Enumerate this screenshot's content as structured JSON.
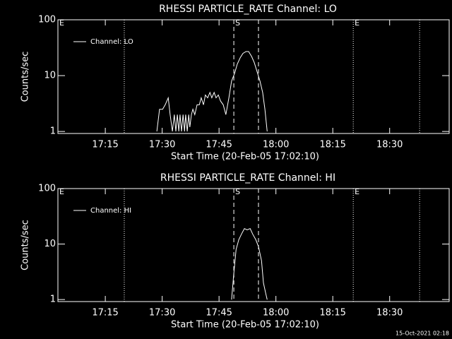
{
  "footer": "15-Oct-2021 02:18",
  "chart_data": [
    {
      "type": "line",
      "title": "RHESSI PARTICLE_RATE Channel: LO",
      "xlabel": "Start Time (20-Feb-05 17:02:10)",
      "ylabel": "Counts/sec",
      "log_y": true,
      "legend": "upper left",
      "xlim": [
        2.5,
        105.7
      ],
      "ylim": [
        0.92,
        100
      ],
      "xticks": [
        {
          "value": 15,
          "label": "17:15"
        },
        {
          "value": 30,
          "label": "17:30"
        },
        {
          "value": 45,
          "label": "17:45"
        },
        {
          "value": 60,
          "label": "18:00"
        },
        {
          "value": 75,
          "label": "18:15"
        },
        {
          "value": 90,
          "label": "18:30"
        }
      ],
      "yticks": [
        1,
        10,
        100
      ],
      "vlines": [
        {
          "x": 20.0,
          "style": "dotted"
        },
        {
          "x": 80.4,
          "style": "dotted"
        },
        {
          "x": 97.9,
          "style": "dotted"
        },
        {
          "x": 48.9,
          "style": "dashed"
        },
        {
          "x": 55.4,
          "style": "dashed"
        }
      ],
      "annotations": [
        {
          "text": "E",
          "x": 2.5
        },
        {
          "text": "S",
          "x": 48.9
        },
        {
          "text": "E",
          "x": 80.4
        }
      ],
      "x": [
        28.6,
        29.3,
        30.1,
        30.8,
        31.6,
        32.1,
        32.7,
        33.2,
        33.6,
        34.0,
        34.4,
        34.7,
        35.1,
        35.5,
        35.9,
        36.2,
        36.6,
        37.0,
        37.3,
        37.7,
        38.1,
        38.6,
        39.2,
        39.8,
        40.3,
        40.9,
        41.4,
        42.0,
        42.6,
        43.1,
        43.7,
        44.2,
        44.8,
        45.4,
        46.1,
        46.8,
        47.6,
        48.3,
        49.1,
        49.8,
        50.6,
        51.3,
        52.1,
        52.8,
        53.6,
        54.3,
        55.0,
        55.8,
        56.5,
        57.1,
        57.7
      ],
      "series": [
        {
          "name": "Channel: LO",
          "color": "#ffffff",
          "values": [
            1,
            2.5,
            2.5,
            3,
            4,
            2,
            1,
            2,
            1,
            2,
            1,
            2,
            1,
            2,
            1,
            2,
            1,
            2,
            1.2,
            2,
            2.5,
            2,
            3,
            3,
            4,
            3,
            4.5,
            4,
            5,
            4,
            5,
            4,
            4.5,
            3.5,
            3,
            2,
            4,
            8,
            11,
            16,
            21,
            25,
            27,
            27,
            22,
            17,
            12,
            8,
            5,
            2.5,
            1
          ]
        }
      ]
    },
    {
      "type": "line",
      "title": "RHESSI PARTICLE_RATE Channel: HI",
      "xlabel": "Start Time (20-Feb-05 17:02:10)",
      "ylabel": "Counts/sec",
      "log_y": true,
      "legend": "upper left",
      "xlim": [
        2.5,
        105.7
      ],
      "ylim": [
        0.92,
        100
      ],
      "xticks": [
        {
          "value": 15,
          "label": "17:15"
        },
        {
          "value": 30,
          "label": "17:30"
        },
        {
          "value": 45,
          "label": "17:45"
        },
        {
          "value": 60,
          "label": "18:00"
        },
        {
          "value": 75,
          "label": "18:15"
        },
        {
          "value": 90,
          "label": "18:30"
        }
      ],
      "yticks": [
        1,
        10,
        100
      ],
      "vlines": [
        {
          "x": 20.0,
          "style": "dotted"
        },
        {
          "x": 80.4,
          "style": "dotted"
        },
        {
          "x": 97.9,
          "style": "dotted"
        },
        {
          "x": 48.9,
          "style": "dashed"
        },
        {
          "x": 55.4,
          "style": "dashed"
        }
      ],
      "annotations": [
        {
          "text": "E",
          "x": 2.5
        },
        {
          "text": "S",
          "x": 48.9
        },
        {
          "text": "E",
          "x": 80.4
        }
      ],
      "x": [
        48.3,
        48.9,
        49.5,
        50.2,
        50.9,
        51.7,
        52.4,
        53.2,
        53.9,
        54.7,
        55.4,
        56.2,
        56.7,
        57.3,
        57.7
      ],
      "series": [
        {
          "name": "Channel: HI",
          "color": "#ffffff",
          "values": [
            1,
            3,
            8,
            12,
            15,
            19,
            18,
            19,
            15,
            12,
            9,
            5,
            2,
            1.3,
            1
          ]
        }
      ]
    }
  ]
}
